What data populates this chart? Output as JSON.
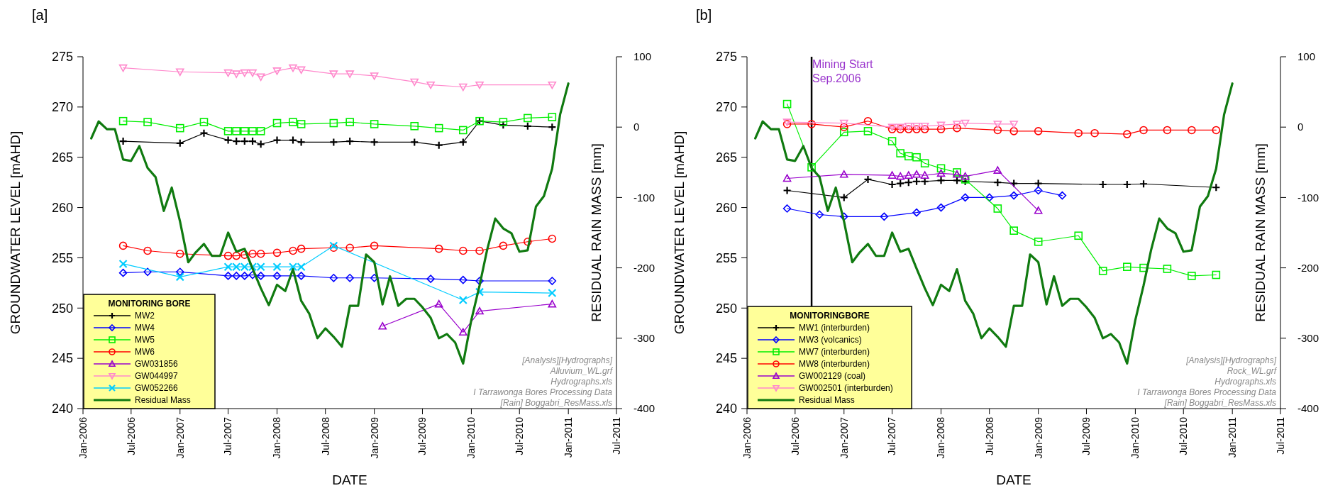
{
  "chart_data": [
    {
      "type": "line",
      "title": "[a]",
      "xlabel": "DATE",
      "ylabel": "GROUNDWATER LEVEL [mAHD]",
      "y2label": "RESIDUAL RAIN MASS [mm]",
      "legend_title": "MONITORING BORE",
      "legend": "bottom left",
      "xlim": [
        "2006-01",
        "2011-07"
      ],
      "xticks": [
        {
          "value": "2006-01",
          "label": "Jan-2006"
        },
        {
          "value": "2006-07",
          "label": "Jul-2006"
        },
        {
          "value": "2007-01",
          "label": "Jan-2007"
        },
        {
          "value": "2007-07",
          "label": "Jul-2007"
        },
        {
          "value": "2008-01",
          "label": "Jan-2008"
        },
        {
          "value": "2008-07",
          "label": "Jul-2008"
        },
        {
          "value": "2009-01",
          "label": "Jan-2009"
        },
        {
          "value": "2009-07",
          "label": "Jul-2009"
        },
        {
          "value": "2010-01",
          "label": "Jan-2010"
        },
        {
          "value": "2010-07",
          "label": "Jul-2010"
        },
        {
          "value": "2011-01",
          "label": "Jan-2011"
        },
        {
          "value": "2011-07",
          "label": "Jul-2011"
        }
      ],
      "ylim": [
        240,
        275
      ],
      "yticks": [
        240,
        245,
        250,
        255,
        260,
        265,
        270,
        275
      ],
      "y2lim": [
        -400,
        100
      ],
      "y2ticks": [
        -400,
        -300,
        -200,
        -100,
        0,
        100
      ],
      "annotations": [
        "[Analysis][Hydrographs]",
        "Alluvium_WL.grf",
        "Hydrographs.xls",
        "I Tarrawonga Bores Processing Data",
        "[Rain] Boggabri_ResMass.xls"
      ],
      "series": [
        {
          "name": "MW2",
          "color": "#000000",
          "marker": "cross",
          "x": [
            "2006-06",
            "2007-01",
            "2007-04",
            "2007-07",
            "2007-08",
            "2007-09",
            "2007-10",
            "2007-11",
            "2008-01",
            "2008-03",
            "2008-04",
            "2008-08",
            "2008-10",
            "2009-01",
            "2009-06",
            "2009-09",
            "2009-12",
            "2010-02",
            "2010-05",
            "2010-08",
            "2010-11"
          ],
          "values": [
            266.6,
            266.4,
            267.4,
            266.7,
            266.6,
            266.6,
            266.6,
            266.3,
            266.7,
            266.7,
            266.5,
            266.5,
            266.6,
            266.5,
            266.5,
            266.2,
            266.5,
            268.6,
            268.2,
            268.1,
            268.0
          ]
        },
        {
          "name": "MW4",
          "color": "#0000ff",
          "marker": "diamond",
          "x": [
            "2006-06",
            "2006-09",
            "2007-01",
            "2007-07",
            "2007-08",
            "2007-09",
            "2007-10",
            "2007-11",
            "2008-01",
            "2008-04",
            "2008-08",
            "2008-10",
            "2009-01",
            "2009-08",
            "2009-12",
            "2010-02",
            "2010-11"
          ],
          "values": [
            253.5,
            253.6,
            253.6,
            253.2,
            253.2,
            253.2,
            253.3,
            253.2,
            253.2,
            253.2,
            253.0,
            253.0,
            253.0,
            252.9,
            252.8,
            252.7,
            252.7
          ]
        },
        {
          "name": "MW5",
          "color": "#00ee00",
          "marker": "square",
          "x": [
            "2006-06",
            "2006-09",
            "2007-01",
            "2007-04",
            "2007-07",
            "2007-08",
            "2007-09",
            "2007-10",
            "2007-11",
            "2008-01",
            "2008-03",
            "2008-04",
            "2008-08",
            "2008-10",
            "2009-01",
            "2009-06",
            "2009-09",
            "2009-12",
            "2010-02",
            "2010-05",
            "2010-08",
            "2010-11"
          ],
          "values": [
            268.6,
            268.5,
            267.9,
            268.5,
            267.6,
            267.6,
            267.6,
            267.6,
            267.6,
            268.4,
            268.5,
            268.3,
            268.4,
            268.5,
            268.3,
            268.1,
            267.9,
            267.7,
            268.6,
            268.5,
            268.9,
            269.0
          ]
        },
        {
          "name": "MW6",
          "color": "#ff0000",
          "marker": "circle",
          "x": [
            "2006-06",
            "2006-09",
            "2007-01",
            "2007-07",
            "2007-08",
            "2007-09",
            "2007-10",
            "2007-11",
            "2008-01",
            "2008-03",
            "2008-04",
            "2008-08",
            "2008-10",
            "2009-01",
            "2009-09",
            "2009-12",
            "2010-02",
            "2010-05",
            "2010-08",
            "2010-11"
          ],
          "values": [
            256.2,
            255.7,
            255.4,
            255.2,
            255.2,
            255.3,
            255.4,
            255.4,
            255.5,
            255.7,
            255.9,
            256.0,
            256.0,
            256.2,
            255.9,
            255.7,
            255.7,
            256.2,
            256.6,
            256.9
          ]
        },
        {
          "name": "GW031856",
          "color": "#9900cc",
          "marker": "triangle",
          "x": [
            "2009-02",
            "2009-09",
            "2009-12",
            "2010-02",
            "2010-11"
          ],
          "values": [
            248.2,
            250.4,
            247.6,
            249.7,
            250.4
          ]
        },
        {
          "name": "GW044997",
          "color": "#ff88cc",
          "marker": "triangle-down",
          "x": [
            "2006-06",
            "2007-01",
            "2007-07",
            "2007-08",
            "2007-09",
            "2007-10",
            "2007-11",
            "2008-01",
            "2008-03",
            "2008-04",
            "2008-08",
            "2008-10",
            "2009-01",
            "2009-06",
            "2009-08",
            "2009-12",
            "2010-02",
            "2010-11"
          ],
          "values": [
            273.9,
            273.5,
            273.4,
            273.3,
            273.4,
            273.4,
            273.0,
            273.6,
            273.9,
            273.7,
            273.3,
            273.3,
            273.1,
            272.5,
            272.2,
            272.0,
            272.2,
            272.2
          ]
        },
        {
          "name": "GW052266",
          "color": "#00ccff",
          "marker": "x",
          "x": [
            "2006-06",
            "2007-01",
            "2007-07",
            "2007-08",
            "2007-09",
            "2007-10",
            "2007-11",
            "2008-01",
            "2008-03",
            "2008-04",
            "2008-08",
            "2009-12",
            "2010-02",
            "2010-11"
          ],
          "values": [
            254.4,
            253.1,
            254.1,
            254.1,
            254.1,
            254.1,
            254.1,
            254.1,
            254.1,
            254.1,
            256.2,
            250.8,
            251.6,
            251.5
          ]
        },
        {
          "name": "Residual Mass",
          "color": "#107a10",
          "marker": "none",
          "axis": "y2",
          "x": [
            "2006-02",
            "2006-03",
            "2006-04",
            "2006-05",
            "2006-06",
            "2006-07",
            "2006-08",
            "2006-09",
            "2006-10",
            "2006-11",
            "2006-12",
            "2007-01",
            "2007-02",
            "2007-03",
            "2007-04",
            "2007-05",
            "2007-06",
            "2007-07",
            "2007-08",
            "2007-09",
            "2007-10",
            "2007-11",
            "2007-12",
            "2008-01",
            "2008-02",
            "2008-03",
            "2008-04",
            "2008-05",
            "2008-06",
            "2008-07",
            "2008-08",
            "2008-09",
            "2008-10",
            "2008-11",
            "2008-12",
            "2009-01",
            "2009-02",
            "2009-03",
            "2009-04",
            "2009-05",
            "2009-06",
            "2009-07",
            "2009-08",
            "2009-09",
            "2009-10",
            "2009-11",
            "2009-12",
            "2010-01",
            "2010-02",
            "2010-03",
            "2010-04",
            "2010-05",
            "2010-06",
            "2010-07",
            "2010-08",
            "2010-09",
            "2010-10",
            "2010-11",
            "2010-12",
            "2011-01"
          ],
          "values": [
            -16,
            8,
            -3,
            -3,
            -46,
            -48,
            -27,
            -58,
            -71,
            -119,
            -86,
            -134,
            -192,
            -178,
            -166,
            -183,
            -183,
            -150,
            -177,
            -173,
            -201,
            -229,
            -253,
            -224,
            -233,
            -202,
            -247,
            -265,
            -300,
            -286,
            -298,
            -312,
            -254,
            -254,
            -181,
            -192,
            -252,
            -212,
            -254,
            -244,
            -244,
            -256,
            -271,
            -300,
            -294,
            -306,
            -336,
            -274,
            -225,
            -175,
            -130,
            -144,
            -151,
            -177,
            -175,
            -113,
            -98,
            -59,
            18,
            62
          ]
        }
      ]
    },
    {
      "type": "line",
      "title": "[b]",
      "xlabel": "DATE",
      "ylabel": "GROUNDWATER LEVEL [mAHD]",
      "y2label": "RESIDUAL RAIN MASS [mm]",
      "legend_title": "MONITORINGBORE",
      "legend": "bottom left",
      "xlim": [
        "2006-01",
        "2011-07"
      ],
      "xticks": [
        {
          "value": "2006-01",
          "label": "Jan-2006"
        },
        {
          "value": "2006-07",
          "label": "Jul-2006"
        },
        {
          "value": "2007-01",
          "label": "Jan-2007"
        },
        {
          "value": "2007-07",
          "label": "Jul-2007"
        },
        {
          "value": "2008-01",
          "label": "Jan-2008"
        },
        {
          "value": "2008-07",
          "label": "Jul-2008"
        },
        {
          "value": "2009-01",
          "label": "Jan-2009"
        },
        {
          "value": "2009-07",
          "label": "Jul-2009"
        },
        {
          "value": "2010-01",
          "label": "Jan-2010"
        },
        {
          "value": "2010-07",
          "label": "Jul-2010"
        },
        {
          "value": "2011-01",
          "label": "Jan-2011"
        },
        {
          "value": "2011-07",
          "label": "Jul-2011"
        }
      ],
      "ylim": [
        240,
        275
      ],
      "yticks": [
        240,
        245,
        250,
        255,
        260,
        265,
        270,
        275
      ],
      "y2lim": [
        -400,
        100
      ],
      "y2ticks": [
        -400,
        -300,
        -200,
        -100,
        0,
        100
      ],
      "ref_lines": [
        {
          "axis": "x",
          "value": "2006-09",
          "label": "Mining Start\nSep.2006",
          "color": "#000000"
        }
      ],
      "annotations": [
        "[Analysis][Hydrographs]",
        "Rock_WL.grf",
        "Hydrographs.xls",
        "I Tarrawonga Bores Processing Data",
        "[Rain] Boggabri_ResMass.xls"
      ],
      "series": [
        {
          "name": "MW1 (interburden)",
          "color": "#000000",
          "marker": "cross",
          "x": [
            "2006-06",
            "2007-01",
            "2007-04",
            "2007-07",
            "2007-08",
            "2007-09",
            "2007-10",
            "2007-11",
            "2008-01",
            "2008-03",
            "2008-04",
            "2008-08",
            "2008-10",
            "2009-01",
            "2009-09",
            "2009-12",
            "2010-02",
            "2010-11"
          ],
          "values": [
            261.7,
            261.0,
            262.8,
            262.3,
            262.4,
            262.5,
            262.6,
            262.6,
            262.7,
            262.7,
            262.6,
            262.5,
            262.4,
            262.4,
            262.3,
            262.3,
            262.35,
            262.0
          ]
        },
        {
          "name": "MW3 (volcanics)",
          "color": "#0000ff",
          "marker": "diamond",
          "x": [
            "2006-06",
            "2006-10",
            "2007-01",
            "2007-06",
            "2007-10",
            "2008-01",
            "2008-04",
            "2008-07",
            "2008-10",
            "2009-01",
            "2009-04"
          ],
          "values": [
            259.9,
            259.3,
            259.1,
            259.1,
            259.5,
            260.0,
            261.0,
            261.0,
            261.2,
            261.7,
            261.2
          ]
        },
        {
          "name": "MW7 (interburden)",
          "color": "#00ee00",
          "marker": "square",
          "x": [
            "2006-06",
            "2006-09",
            "2007-01",
            "2007-04",
            "2007-07",
            "2007-08",
            "2007-09",
            "2007-10",
            "2007-11",
            "2008-01",
            "2008-03",
            "2008-04",
            "2008-08",
            "2008-10",
            "2009-01",
            "2009-06",
            "2009-09",
            "2009-12",
            "2010-02",
            "2010-05",
            "2010-08",
            "2010-11"
          ],
          "values": [
            270.3,
            264.0,
            267.5,
            267.6,
            266.6,
            265.4,
            265.1,
            265.0,
            264.4,
            263.9,
            263.5,
            262.8,
            259.9,
            257.7,
            256.6,
            257.2,
            253.7,
            254.1,
            254.0,
            253.9,
            253.2,
            253.3
          ]
        },
        {
          "name": "MW8 (interburden)",
          "color": "#ff0000",
          "marker": "circle",
          "x": [
            "2006-06",
            "2006-09",
            "2007-01",
            "2007-04",
            "2007-07",
            "2007-08",
            "2007-09",
            "2007-10",
            "2007-11",
            "2008-01",
            "2008-03",
            "2008-08",
            "2008-10",
            "2009-01",
            "2009-06",
            "2009-08",
            "2009-12",
            "2010-02",
            "2010-05",
            "2010-08",
            "2010-11"
          ],
          "values": [
            268.3,
            268.3,
            268.0,
            268.6,
            267.8,
            267.8,
            267.8,
            267.8,
            267.8,
            267.8,
            267.9,
            267.7,
            267.6,
            267.6,
            267.4,
            267.4,
            267.3,
            267.7,
            267.7,
            267.7,
            267.7
          ]
        },
        {
          "name": "GW002129 (coal)",
          "color": "#9900cc",
          "marker": "triangle",
          "x": [
            "2006-06",
            "2007-01",
            "2007-07",
            "2007-08",
            "2007-09",
            "2007-10",
            "2007-11",
            "2008-01",
            "2008-03",
            "2008-04",
            "2008-08",
            "2009-01"
          ],
          "values": [
            262.9,
            263.3,
            263.2,
            263.1,
            263.2,
            263.3,
            263.2,
            263.4,
            263.3,
            263.1,
            263.7,
            259.7
          ]
        },
        {
          "name": "GW002501 (interburden)",
          "color": "#ff88cc",
          "marker": "triangle-down",
          "x": [
            "2006-06",
            "2007-01",
            "2007-07",
            "2007-08",
            "2007-09",
            "2007-10",
            "2007-11",
            "2008-01",
            "2008-03",
            "2008-04",
            "2008-08",
            "2008-10"
          ],
          "values": [
            268.5,
            268.4,
            268.0,
            268.0,
            268.1,
            268.1,
            268.1,
            268.2,
            268.3,
            268.4,
            268.3,
            268.3
          ]
        },
        {
          "name": "Residual Mass",
          "color": "#107a10",
          "marker": "none",
          "axis": "y2",
          "x": [
            "2006-02",
            "2006-03",
            "2006-04",
            "2006-05",
            "2006-06",
            "2006-07",
            "2006-08",
            "2006-09",
            "2006-10",
            "2006-11",
            "2006-12",
            "2007-01",
            "2007-02",
            "2007-03",
            "2007-04",
            "2007-05",
            "2007-06",
            "2007-07",
            "2007-08",
            "2007-09",
            "2007-10",
            "2007-11",
            "2007-12",
            "2008-01",
            "2008-02",
            "2008-03",
            "2008-04",
            "2008-05",
            "2008-06",
            "2008-07",
            "2008-08",
            "2008-09",
            "2008-10",
            "2008-11",
            "2008-12",
            "2009-01",
            "2009-02",
            "2009-03",
            "2009-04",
            "2009-05",
            "2009-06",
            "2009-07",
            "2009-08",
            "2009-09",
            "2009-10",
            "2009-11",
            "2009-12",
            "2010-01",
            "2010-02",
            "2010-03",
            "2010-04",
            "2010-05",
            "2010-06",
            "2010-07",
            "2010-08",
            "2010-09",
            "2010-10",
            "2010-11",
            "2010-12",
            "2011-01"
          ],
          "values": [
            -16,
            8,
            -3,
            -3,
            -46,
            -48,
            -27,
            -58,
            -71,
            -119,
            -86,
            -134,
            -192,
            -178,
            -166,
            -183,
            -183,
            -150,
            -177,
            -173,
            -201,
            -229,
            -253,
            -224,
            -233,
            -202,
            -247,
            -265,
            -300,
            -286,
            -298,
            -312,
            -254,
            -254,
            -181,
            -192,
            -252,
            -212,
            -254,
            -244,
            -244,
            -256,
            -271,
            -300,
            -294,
            -306,
            -336,
            -274,
            -225,
            -175,
            -130,
            -144,
            -151,
            -177,
            -175,
            -113,
            -98,
            -59,
            18,
            62
          ]
        }
      ]
    }
  ]
}
